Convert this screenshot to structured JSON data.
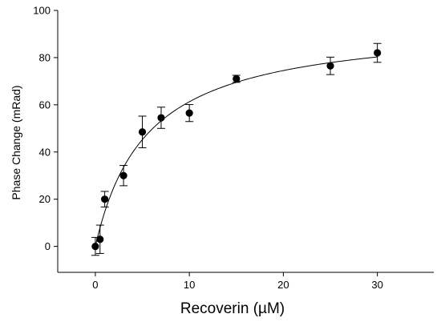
{
  "chart_data": {
    "type": "scatter",
    "title": "",
    "xlabel": "Recoverin (µM)",
    "ylabel": "Phase Change (mRad)",
    "xlim": [
      -4,
      36
    ],
    "ylim": [
      -11,
      100
    ],
    "x_ticks": [
      0,
      10,
      20,
      30
    ],
    "y_ticks": [
      0,
      20,
      40,
      60,
      80,
      100
    ],
    "grid": false,
    "legend": "none",
    "colors": {
      "points": "#000000",
      "curve": "#000000",
      "axes": "#000000"
    },
    "series": [
      {
        "x": [
          0,
          0.5,
          1,
          3,
          5,
          7,
          10,
          15,
          25,
          30
        ],
        "y": [
          0,
          3,
          20,
          30,
          48.5,
          54.5,
          56.5,
          71,
          76.5,
          82
        ],
        "error": [
          3.8,
          6,
          3.3,
          4.3,
          6.7,
          4.5,
          3.6,
          1.5,
          3.7,
          4
        ]
      }
    ],
    "fit": {
      "model": "hyperbola",
      "bmax": 95,
      "kd": 5.5
    }
  }
}
